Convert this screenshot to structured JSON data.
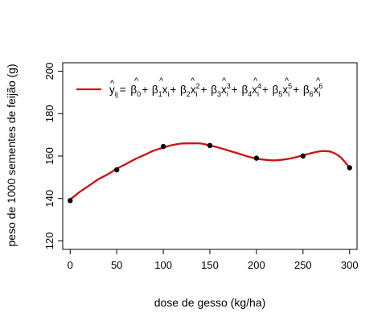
{
  "chart_data": {
    "type": "line",
    "xlabel": "dose de gesso (kg/ha)",
    "ylabel": "peso de 1000 sementes de feijão (g)",
    "xlim": [
      -8,
      308
    ],
    "ylim": [
      116,
      204
    ],
    "x_ticks": [
      0,
      50,
      100,
      150,
      200,
      250,
      300
    ],
    "y_ticks": [
      120,
      140,
      160,
      180,
      200
    ],
    "grid": false,
    "legend_position": "top",
    "series": [
      {
        "type": "scatter",
        "x": [
          0,
          50,
          100,
          150,
          200,
          250,
          300
        ],
        "y": [
          139,
          153.5,
          164.5,
          165,
          159,
          160,
          154.5
        ],
        "color": "#000000"
      },
      {
        "type": "line",
        "x": [
          0,
          10,
          20,
          30,
          40,
          50,
          60,
          70,
          80,
          90,
          100,
          110,
          120,
          130,
          140,
          150,
          160,
          170,
          180,
          190,
          200,
          210,
          220,
          230,
          240,
          250,
          260,
          270,
          280,
          290,
          300
        ],
        "y": [
          139.5,
          143,
          146,
          149,
          151.3,
          154,
          156.3,
          158.6,
          160.6,
          162.6,
          164,
          165.2,
          165.9,
          166,
          165.9,
          165,
          163.9,
          162.6,
          161.3,
          159.9,
          158.8,
          158.2,
          158,
          158.4,
          159.2,
          160.3,
          161.5,
          162.3,
          162,
          159.5,
          154.5
        ],
        "color": "#cc1111"
      }
    ],
    "legend": {
      "y": "y",
      "ij": "ij",
      "eq": "=",
      "b0": "β",
      "s0": "0",
      "plus1": "+",
      "b1": "β",
      "s1": "1",
      "x1": "x",
      "i1": "i",
      "plus2": "+",
      "b2": "β",
      "s2": "2",
      "x2": "x",
      "i2": "i",
      "e2": "2",
      "plus3": "+",
      "b3": "β",
      "s3": "3",
      "x3": "x",
      "i3": "i",
      "e3": "3",
      "plus4": "+",
      "b4": "β",
      "s4": "4",
      "x4": "x",
      "i4": "i",
      "e4": "4",
      "plus5": "+",
      "b5": "β",
      "s5": "5",
      "x5": "x",
      "i5": "i",
      "e5": "5",
      "plus6": "+",
      "b6": "β",
      "s6": "6",
      "x6": "x",
      "i6": "i",
      "e6": "6",
      "hat": "^"
    }
  }
}
